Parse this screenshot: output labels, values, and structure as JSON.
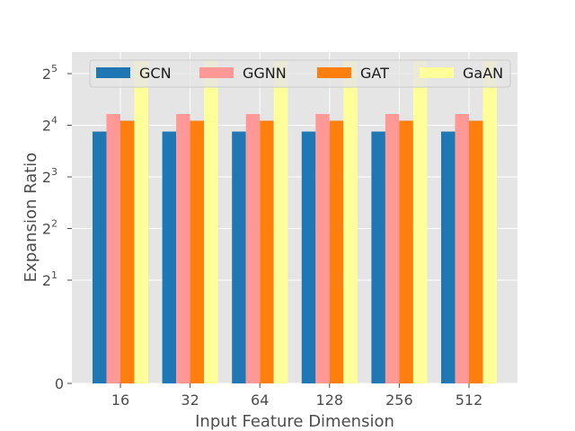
{
  "chart_data": {
    "type": "bar",
    "title": "",
    "xlabel": "Input Feature Dimension",
    "ylabel": "Expansion Ratio",
    "y_scale": "symlog base 2 (linear below 2^1)",
    "ylim": [
      0,
      48
    ],
    "categories": [
      "16",
      "32",
      "64",
      "128",
      "256",
      "512"
    ],
    "series": [
      {
        "name": "GCN",
        "color": "#1f77b4",
        "values": [
          14.7,
          14.7,
          14.7,
          14.7,
          14.7,
          14.7
        ]
      },
      {
        "name": "GGNN",
        "color": "#ff9896",
        "values": [
          18.6,
          18.6,
          18.6,
          18.6,
          18.6,
          18.6
        ]
      },
      {
        "name": "GAT",
        "color": "#ff7f0e",
        "values": [
          17.0,
          17.0,
          17.0,
          17.0,
          17.0,
          17.0
        ]
      },
      {
        "name": "GaAN",
        "color": "#ffff99",
        "values": [
          38.0,
          38.0,
          38.0,
          38.0,
          38.0,
          38.0
        ]
      }
    ],
    "y_ticks": [
      {
        "value": 0,
        "base": "0",
        "exp": ""
      },
      {
        "value": 2,
        "base": "2",
        "exp": "1"
      },
      {
        "value": 4,
        "base": "2",
        "exp": "2"
      },
      {
        "value": 8,
        "base": "2",
        "exp": "3"
      },
      {
        "value": 16,
        "base": "2",
        "exp": "4"
      },
      {
        "value": 32,
        "base": "2",
        "exp": "5"
      }
    ],
    "grid": true,
    "legend_placement": "top, single row",
    "colors": {
      "plot_bg": "#e5e5e5",
      "grid": "#ffffff",
      "text": "#4d4d4d"
    }
  }
}
